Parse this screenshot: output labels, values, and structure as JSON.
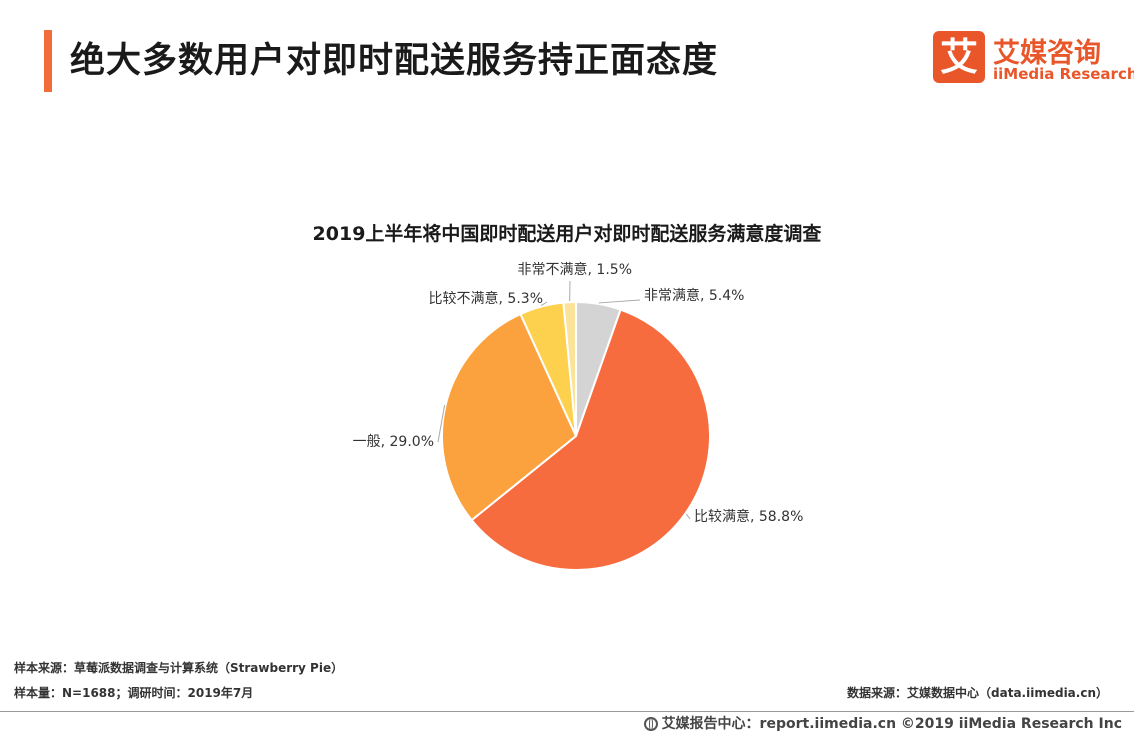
{
  "page": {
    "title": "绝大多数用户对即时配送服务持正面态度",
    "accent_color": "#F26B3A"
  },
  "logo": {
    "mark": "艾",
    "cn": "艾媒咨询",
    "en": "iiMedia Research",
    "color": "#E8562A"
  },
  "chart_data": {
    "type": "pie",
    "title": "2019上半年将中国即时配送用户对即时配送服务满意度调查",
    "slices": [
      {
        "label": "非常满意",
        "value": 5.4,
        "display": "非常满意, 5.4%",
        "color": "#D4D4D4"
      },
      {
        "label": "比较满意",
        "value": 58.8,
        "display": "比较满意, 58.8%",
        "color": "#F76C3F"
      },
      {
        "label": "一般",
        "value": 29.0,
        "display": "一般, 29.0%",
        "color": "#FBA23E"
      },
      {
        "label": "比较不满意",
        "value": 5.3,
        "display": "比较不满意, 5.3%",
        "color": "#FDD04E"
      },
      {
        "label": "非常不满意",
        "value": 1.5,
        "display": "非常不满意, 1.5%",
        "color": "#FBE39A"
      }
    ],
    "start": "top",
    "direction": "clockwise",
    "legend": "none"
  },
  "footer": {
    "source_left": "样本来源：草莓派数据调查与计算系统（Strawberry Pie）",
    "sample": "样本量：N=1688；调研时间：2019年7月",
    "source_right": "数据来源：艾媒数据中心（data.iimedia.cn）",
    "bottom": "艾媒报告中心：report.iimedia.cn   ©2019  iiMedia Research  Inc",
    "bottom_icon": "globe-icon"
  }
}
